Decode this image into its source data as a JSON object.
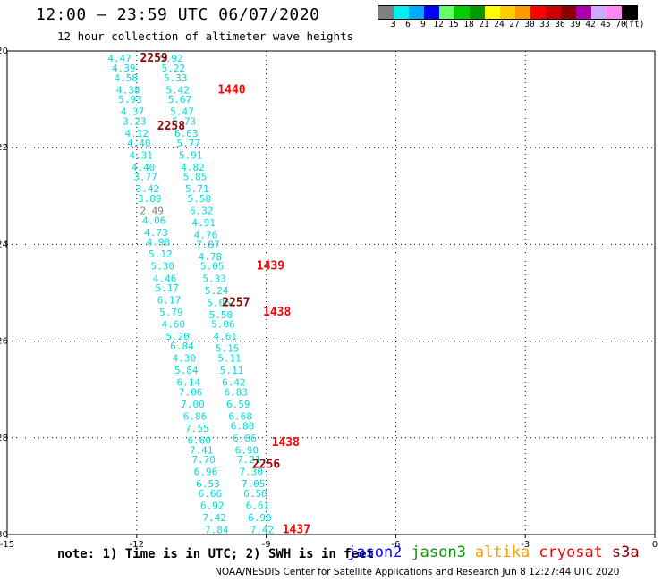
{
  "header": {
    "title": "12:00 — 23:59 UTC 06/07/2020",
    "subtitle": "12 hour collection of altimeter wave heights"
  },
  "color_scale": {
    "unit_label": "(ft)",
    "bins": [
      {
        "label": "3",
        "color": "#808080"
      },
      {
        "label": "6",
        "color": "#00eeee"
      },
      {
        "label": "9",
        "color": "#00aaff"
      },
      {
        "label": "12",
        "color": "#0000ff"
      },
      {
        "label": "15",
        "color": "#66ff66"
      },
      {
        "label": "18",
        "color": "#00cc00"
      },
      {
        "label": "21",
        "color": "#009900"
      },
      {
        "label": "24",
        "color": "#ffff00"
      },
      {
        "label": "27",
        "color": "#ffcc00"
      },
      {
        "label": "30",
        "color": "#ff9900"
      },
      {
        "label": "33",
        "color": "#ff0000"
      },
      {
        "label": "36",
        "color": "#cc0000"
      },
      {
        "label": "39",
        "color": "#880000"
      },
      {
        "label": "42",
        "color": "#aa00aa"
      },
      {
        "label": "45",
        "color": "#ccaaff"
      },
      {
        "label": "70",
        "color": "#ff88ee"
      },
      {
        "label": "",
        "color": "#000000"
      }
    ]
  },
  "chart_data": {
    "type": "scatter",
    "xlim": [
      -15,
      0
    ],
    "ylim": [
      -30,
      -20
    ],
    "x_ticks": [
      -15,
      -12,
      -9,
      -6,
      -3,
      0
    ],
    "x_tick_labels": [
      "-15",
      "-12",
      "-9",
      "-6",
      "-3",
      "0"
    ],
    "y_ticks": [
      -20,
      -22,
      -24,
      -26,
      -28,
      -30
    ],
    "y_tick_labels": [
      "-20",
      "-22",
      "-24",
      "-26",
      "-28",
      "-30"
    ],
    "grid": true,
    "points": [
      {
        "x": -12.4,
        "y": -20.15,
        "v": "4.47",
        "c": "#00dddd"
      },
      {
        "x": -12.3,
        "y": -20.35,
        "v": "4.39",
        "c": "#00dddd"
      },
      {
        "x": -12.25,
        "y": -20.55,
        "v": "4.58",
        "c": "#00dddd"
      },
      {
        "x": -12.2,
        "y": -20.8,
        "v": "4.38",
        "c": "#00dddd"
      },
      {
        "x": -12.15,
        "y": -21.0,
        "v": "5.93",
        "c": "#00dddd"
      },
      {
        "x": -12.1,
        "y": -21.25,
        "v": "4.37",
        "c": "#00dddd"
      },
      {
        "x": -12.05,
        "y": -21.45,
        "v": "3.23",
        "c": "#00dddd"
      },
      {
        "x": -12.0,
        "y": -21.7,
        "v": "4.12",
        "c": "#00dddd"
      },
      {
        "x": -11.95,
        "y": -21.9,
        "v": "4.40",
        "c": "#00dddd"
      },
      {
        "x": -11.9,
        "y": -22.15,
        "v": "4.31",
        "c": "#00dddd"
      },
      {
        "x": -11.85,
        "y": -22.4,
        "v": "4.40",
        "c": "#00dddd"
      },
      {
        "x": -11.8,
        "y": -22.6,
        "v": "3.77",
        "c": "#00dddd"
      },
      {
        "x": -11.75,
        "y": -22.85,
        "v": "3.42",
        "c": "#00dddd"
      },
      {
        "x": -11.7,
        "y": -23.05,
        "v": "3.89",
        "c": "#00dddd"
      },
      {
        "x": -11.65,
        "y": -23.3,
        "v": "2.49",
        "c": "#808080"
      },
      {
        "x": -11.6,
        "y": -23.5,
        "v": "4.06",
        "c": "#00dddd"
      },
      {
        "x": -11.55,
        "y": -23.75,
        "v": "4.73",
        "c": "#00dddd"
      },
      {
        "x": -11.5,
        "y": -23.95,
        "v": "4.90",
        "c": "#00dddd"
      },
      {
        "x": -11.45,
        "y": -24.2,
        "v": "5.12",
        "c": "#00dddd"
      },
      {
        "x": -11.4,
        "y": -24.45,
        "v": "5.30",
        "c": "#00dddd"
      },
      {
        "x": -11.35,
        "y": -24.7,
        "v": "4.46",
        "c": "#00dddd"
      },
      {
        "x": -11.3,
        "y": -24.9,
        "v": "5.17",
        "c": "#00dddd"
      },
      {
        "x": -11.25,
        "y": -25.15,
        "v": "6.17",
        "c": "#00dddd"
      },
      {
        "x": -11.2,
        "y": -25.4,
        "v": "5.79",
        "c": "#00dddd"
      },
      {
        "x": -11.15,
        "y": -25.65,
        "v": "4.60",
        "c": "#00dddd"
      },
      {
        "x": -11.05,
        "y": -25.9,
        "v": "5.20",
        "c": "#00dddd"
      },
      {
        "x": -10.95,
        "y": -26.1,
        "v": "6.84",
        "c": "#00dddd"
      },
      {
        "x": -10.9,
        "y": -26.35,
        "v": "4.30",
        "c": "#00dddd"
      },
      {
        "x": -10.85,
        "y": -26.6,
        "v": "5.84",
        "c": "#00dddd"
      },
      {
        "x": -10.8,
        "y": -26.85,
        "v": "6.14",
        "c": "#00dddd"
      },
      {
        "x": -10.75,
        "y": -27.05,
        "v": "7.06",
        "c": "#00dddd"
      },
      {
        "x": -10.7,
        "y": -27.3,
        "v": "7.00",
        "c": "#00dddd"
      },
      {
        "x": -10.65,
        "y": -27.55,
        "v": "6.86",
        "c": "#00dddd"
      },
      {
        "x": -10.6,
        "y": -27.8,
        "v": "7.55",
        "c": "#00dddd"
      },
      {
        "x": -10.55,
        "y": -28.05,
        "v": "6.60",
        "c": "#00dddd"
      },
      {
        "x": -10.5,
        "y": -28.25,
        "v": "7.41",
        "c": "#00dddd"
      },
      {
        "x": -10.45,
        "y": -28.45,
        "v": "7.70",
        "c": "#00dddd"
      },
      {
        "x": -10.4,
        "y": -28.7,
        "v": "6.96",
        "c": "#00dddd"
      },
      {
        "x": -10.35,
        "y": -28.95,
        "v": "6.53",
        "c": "#00dddd"
      },
      {
        "x": -10.3,
        "y": -29.15,
        "v": "6.66",
        "c": "#00dddd"
      },
      {
        "x": -10.25,
        "y": -29.4,
        "v": "6.92",
        "c": "#00dddd"
      },
      {
        "x": -10.2,
        "y": -29.65,
        "v": "7.42",
        "c": "#00dddd"
      },
      {
        "x": -10.15,
        "y": -29.9,
        "v": "7.84",
        "c": "#00dddd"
      },
      {
        "x": -11.2,
        "y": -20.15,
        "v": "5.92",
        "c": "#00dddd"
      },
      {
        "x": -11.15,
        "y": -20.35,
        "v": "5.22",
        "c": "#00dddd"
      },
      {
        "x": -11.1,
        "y": -20.55,
        "v": "5.33",
        "c": "#00dddd"
      },
      {
        "x": -11.05,
        "y": -20.8,
        "v": "5.42",
        "c": "#00dddd"
      },
      {
        "x": -11.0,
        "y": -21.0,
        "v": "5.67",
        "c": "#00dddd"
      },
      {
        "x": -10.95,
        "y": -21.25,
        "v": "5.47",
        "c": "#00dddd"
      },
      {
        "x": -10.9,
        "y": -21.45,
        "v": "5.73",
        "c": "#00dddd"
      },
      {
        "x": -10.85,
        "y": -21.7,
        "v": "6.63",
        "c": "#00dddd"
      },
      {
        "x": -10.8,
        "y": -21.9,
        "v": "5.77",
        "c": "#00dddd"
      },
      {
        "x": -10.75,
        "y": -22.15,
        "v": "5.91",
        "c": "#00dddd"
      },
      {
        "x": -10.7,
        "y": -22.4,
        "v": "4.82",
        "c": "#00dddd"
      },
      {
        "x": -10.65,
        "y": -22.6,
        "v": "5.85",
        "c": "#00dddd"
      },
      {
        "x": -10.6,
        "y": -22.85,
        "v": "5.71",
        "c": "#00dddd"
      },
      {
        "x": -10.55,
        "y": -23.05,
        "v": "5.58",
        "c": "#00dddd"
      },
      {
        "x": -10.5,
        "y": -23.3,
        "v": "6.32",
        "c": "#00dddd"
      },
      {
        "x": -10.45,
        "y": -23.55,
        "v": "4.91",
        "c": "#00dddd"
      },
      {
        "x": -10.4,
        "y": -23.8,
        "v": "4.76",
        "c": "#00dddd"
      },
      {
        "x": -10.35,
        "y": -24.0,
        "v": "7.87",
        "c": "#00dddd"
      },
      {
        "x": -10.3,
        "y": -24.25,
        "v": "4.78",
        "c": "#00dddd"
      },
      {
        "x": -10.25,
        "y": -24.45,
        "v": "5.05",
        "c": "#00dddd"
      },
      {
        "x": -10.2,
        "y": -24.7,
        "v": "5.33",
        "c": "#00dddd"
      },
      {
        "x": -10.15,
        "y": -24.95,
        "v": "5.24",
        "c": "#00dddd"
      },
      {
        "x": -10.1,
        "y": -25.2,
        "v": "5.06",
        "c": "#00dddd"
      },
      {
        "x": -10.05,
        "y": -25.45,
        "v": "5.50",
        "c": "#00dddd"
      },
      {
        "x": -10.0,
        "y": -25.65,
        "v": "5.06",
        "c": "#00dddd"
      },
      {
        "x": -9.95,
        "y": -25.9,
        "v": "4.61",
        "c": "#00dddd"
      },
      {
        "x": -9.9,
        "y": -26.15,
        "v": "5.15",
        "c": "#00dddd"
      },
      {
        "x": -9.85,
        "y": -26.35,
        "v": "5.11",
        "c": "#00dddd"
      },
      {
        "x": -9.8,
        "y": -26.6,
        "v": "5.11",
        "c": "#00dddd"
      },
      {
        "x": -9.75,
        "y": -26.85,
        "v": "6.42",
        "c": "#00dddd"
      },
      {
        "x": -9.7,
        "y": -27.05,
        "v": "6.83",
        "c": "#00dddd"
      },
      {
        "x": -9.65,
        "y": -27.3,
        "v": "6.59",
        "c": "#00dddd"
      },
      {
        "x": -9.6,
        "y": -27.55,
        "v": "6.68",
        "c": "#00dddd"
      },
      {
        "x": -9.55,
        "y": -27.75,
        "v": "6.80",
        "c": "#00dddd"
      },
      {
        "x": -9.5,
        "y": -28.0,
        "v": "6.86",
        "c": "#00dddd"
      },
      {
        "x": -9.45,
        "y": -28.25,
        "v": "6.90",
        "c": "#00dddd"
      },
      {
        "x": -9.4,
        "y": -28.45,
        "v": "7.21",
        "c": "#00dddd"
      },
      {
        "x": -9.35,
        "y": -28.7,
        "v": "7.30",
        "c": "#00dddd"
      },
      {
        "x": -9.3,
        "y": -28.95,
        "v": "7.05",
        "c": "#00dddd"
      },
      {
        "x": -9.25,
        "y": -29.15,
        "v": "6.58",
        "c": "#00dddd"
      },
      {
        "x": -9.2,
        "y": -29.4,
        "v": "6.61",
        "c": "#00dddd"
      },
      {
        "x": -9.15,
        "y": -29.65,
        "v": "6.90",
        "c": "#00dddd"
      },
      {
        "x": -9.1,
        "y": -29.9,
        "v": "7.42",
        "c": "#00dddd"
      }
    ],
    "track_labels": [
      {
        "x": -11.6,
        "y": -20.15,
        "v": "2259",
        "c": "#990000"
      },
      {
        "x": -11.2,
        "y": -21.55,
        "v": "2258",
        "c": "#990000"
      },
      {
        "x": -9.7,
        "y": -25.2,
        "v": "2257",
        "c": "#990000"
      },
      {
        "x": -9.0,
        "y": -28.55,
        "v": "2256",
        "c": "#990000"
      },
      {
        "x": -9.8,
        "y": -20.8,
        "v": "1440",
        "c": "#ff0000"
      },
      {
        "x": -8.9,
        "y": -24.45,
        "v": "1439",
        "c": "#ff0000"
      },
      {
        "x": -8.75,
        "y": -25.4,
        "v": "1438",
        "c": "#ff0000"
      },
      {
        "x": -8.55,
        "y": -28.1,
        "v": "1438",
        "c": "#ff0000"
      },
      {
        "x": -8.3,
        "y": -29.9,
        "v": "1437",
        "c": "#ff0000"
      }
    ]
  },
  "footer": {
    "note": "note: 1) Time is in UTC; 2) SWH is in feet",
    "satellites": [
      {
        "name": "jason2",
        "color": "#0000ff"
      },
      {
        "name": "jason3",
        "color": "#009900"
      },
      {
        "name": "altika",
        "color": "#ff9900"
      },
      {
        "name": "cryosat",
        "color": "#ff0000"
      },
      {
        "name": "s3a",
        "color": "#880000"
      }
    ],
    "credit": "NOAA/NESDIS Center for Satellite Applications and Research   Jun 8 12:27:44 UTC 2020"
  }
}
